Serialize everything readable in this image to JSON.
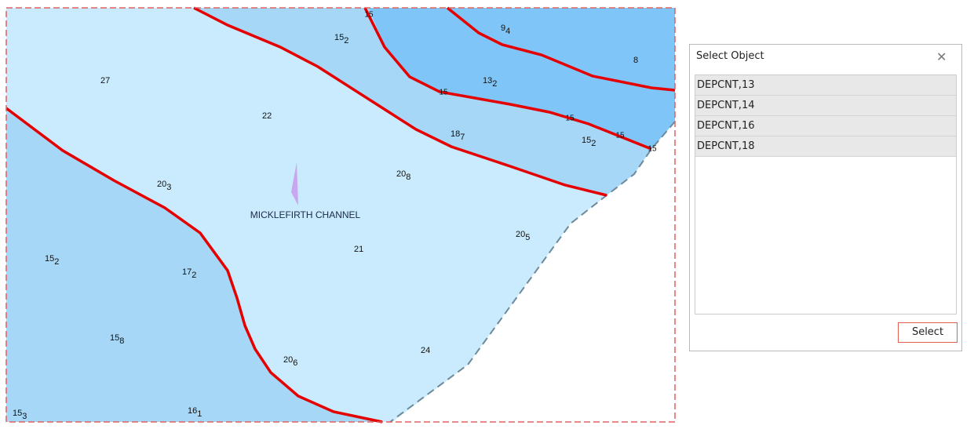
{
  "map": {
    "channel_label": "MICKLEFIRTH CHANNEL",
    "soundings": [
      {
        "depth": "27"
      },
      {
        "depth": "22"
      },
      {
        "depth": "15",
        "sub": "2"
      },
      {
        "depth": "9",
        "sub": "4"
      },
      {
        "depth": "8"
      },
      {
        "depth": "13",
        "sub": "2"
      },
      {
        "depth": "18",
        "sub": "7"
      },
      {
        "depth": "15",
        "sub": "2"
      },
      {
        "depth": "20",
        "sub": "3"
      },
      {
        "depth": "20",
        "sub": "8"
      },
      {
        "depth": "21"
      },
      {
        "depth": "20",
        "sub": "5"
      },
      {
        "depth": "15",
        "sub": "2"
      },
      {
        "depth": "17",
        "sub": "2"
      },
      {
        "depth": "15",
        "sub": "8"
      },
      {
        "depth": "20",
        "sub": "6"
      },
      {
        "depth": "24"
      },
      {
        "depth": "15",
        "sub": "3"
      },
      {
        "depth": "16",
        "sub": "1"
      }
    ],
    "contour_labels": [
      "15",
      "15",
      "15",
      "15",
      "15"
    ]
  },
  "dialog": {
    "title": "Select Object",
    "items": [
      "DEPCNT,13",
      "DEPCNT,14",
      "DEPCNT,16",
      "DEPCNT,18"
    ],
    "button": "Select"
  }
}
